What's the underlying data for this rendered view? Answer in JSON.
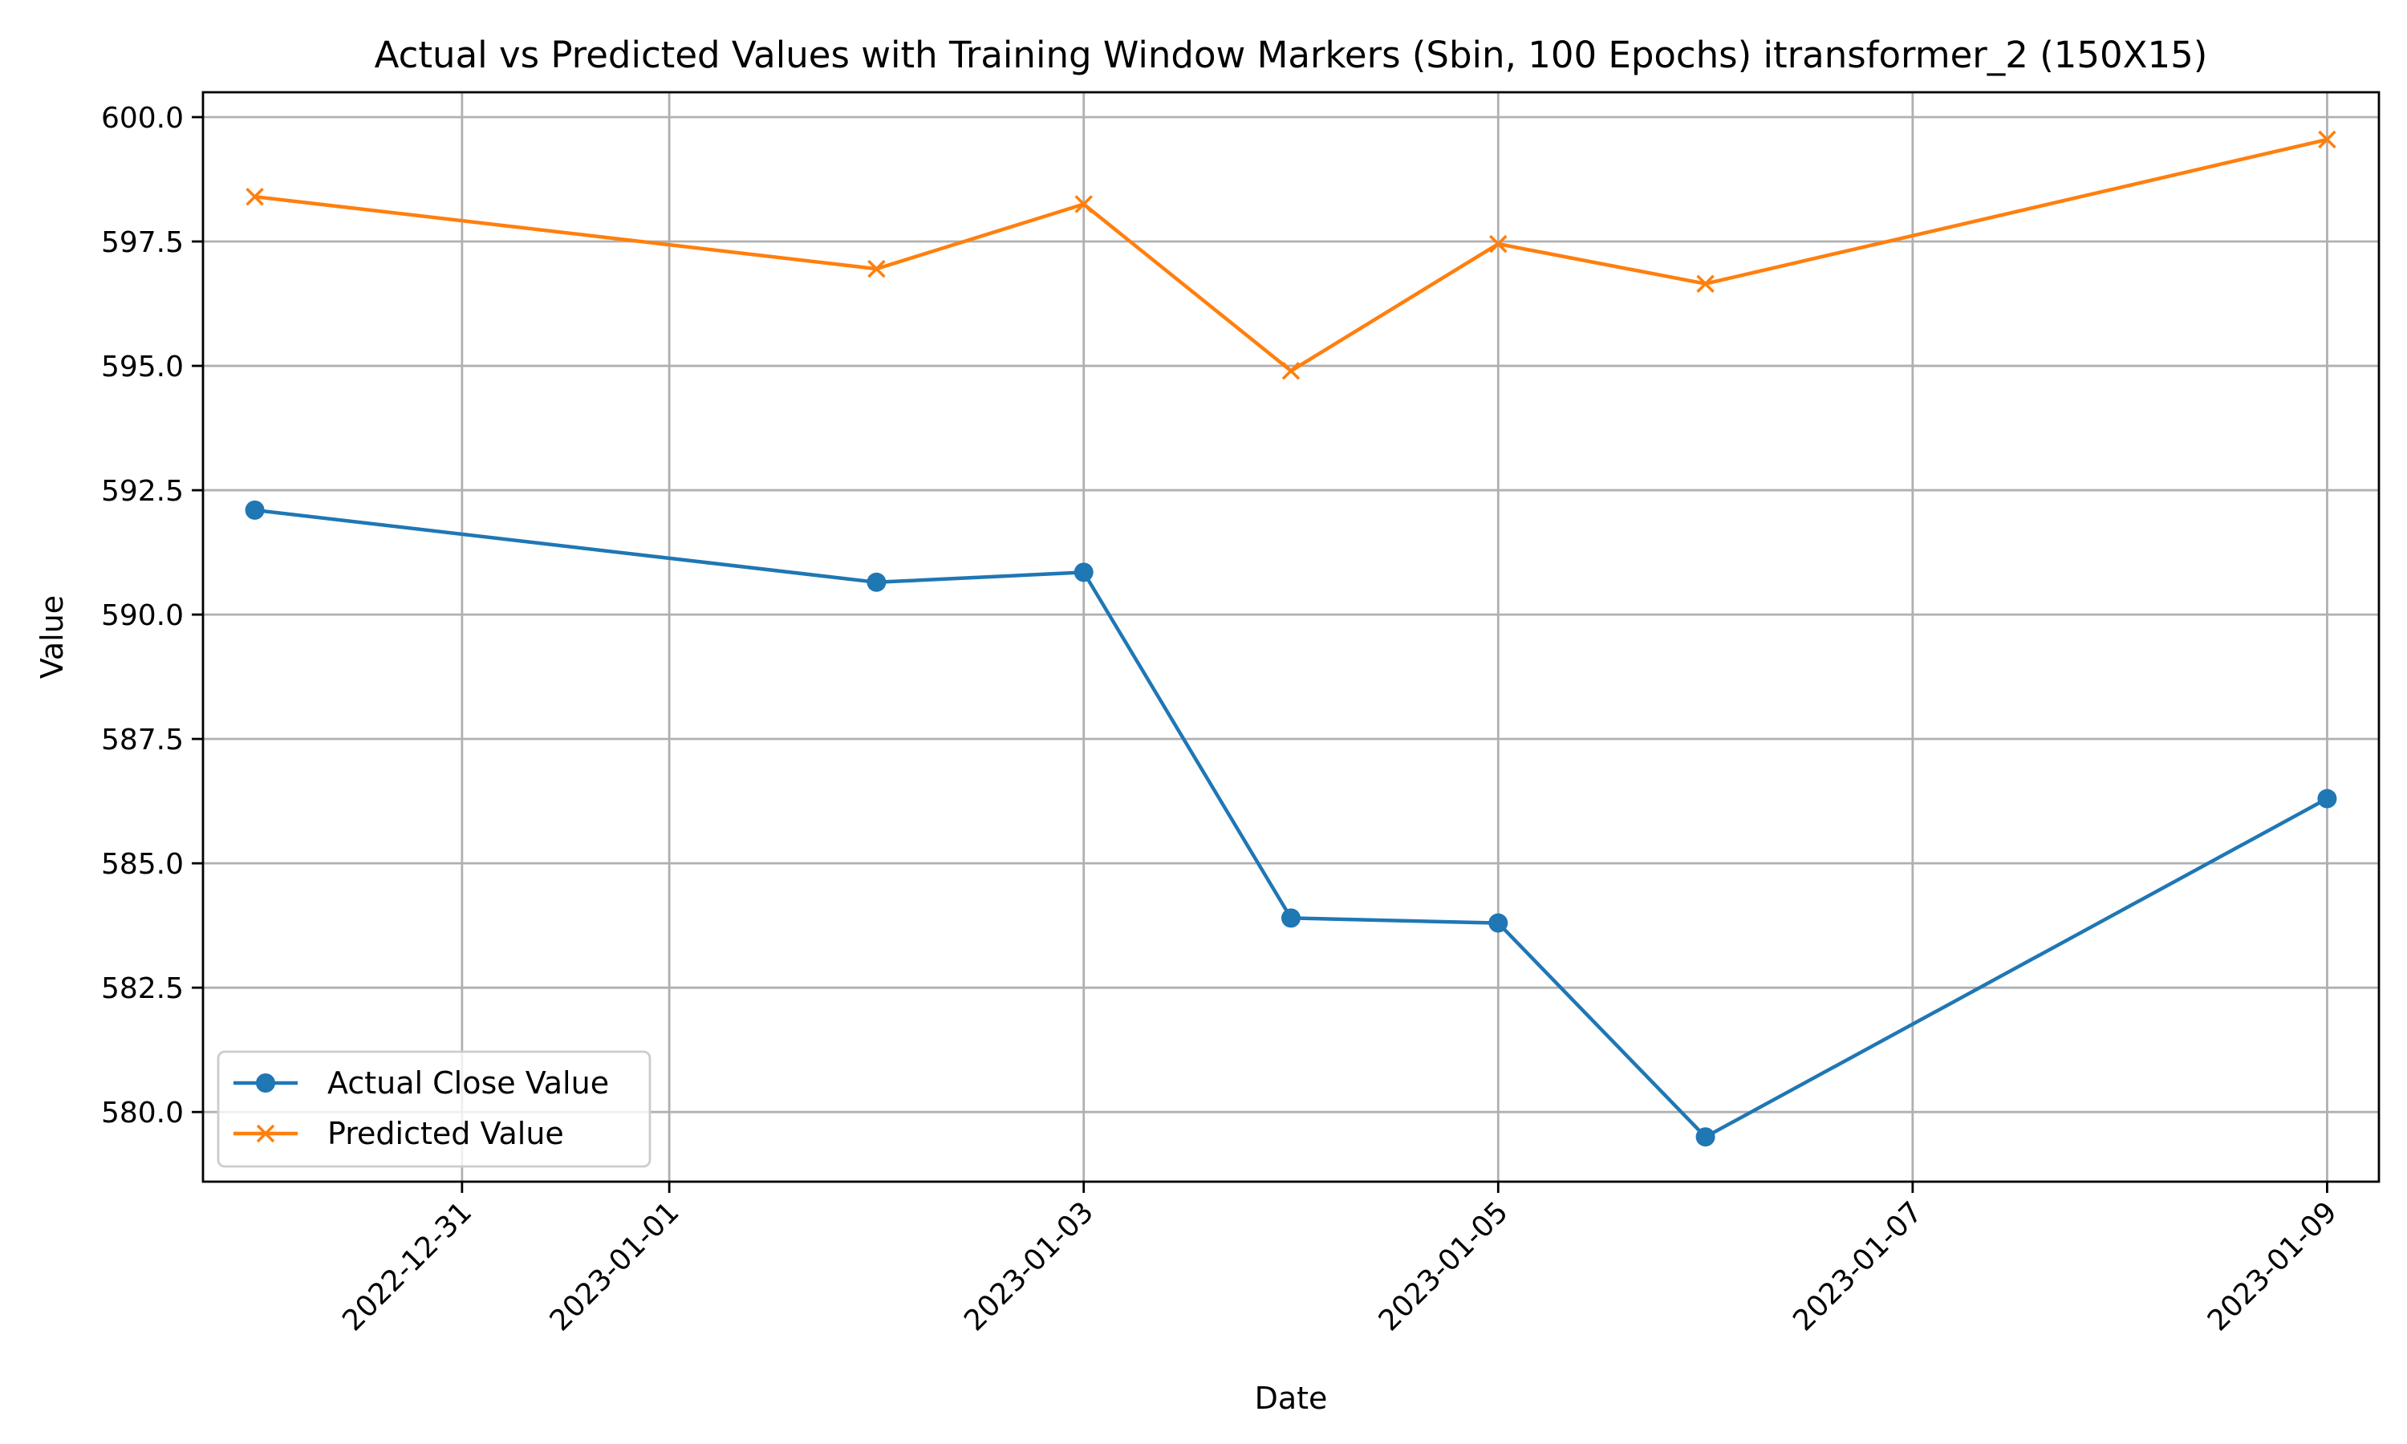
{
  "chart_data": {
    "type": "line",
    "title": "Actual vs Predicted Values with Training Window Markers (Sbin, 100 Epochs) itransformer_2 (150X15)",
    "xlabel": "Date",
    "ylabel": "Value",
    "x_type": "date",
    "xlim": [
      "2022-12-29T18:00",
      "2023-01-09T06:00"
    ],
    "ylim": [
      578.6,
      600.5
    ],
    "x_ticks": [
      "2022-12-31",
      "2023-01-01",
      "2023-01-03",
      "2023-01-05",
      "2023-01-07",
      "2023-01-09"
    ],
    "y_ticks": [
      580.0,
      582.5,
      585.0,
      587.5,
      590.0,
      592.5,
      595.0,
      597.5,
      600.0
    ],
    "y_tick_labels": [
      "580.0",
      "582.5",
      "585.0",
      "587.5",
      "590.0",
      "592.5",
      "595.0",
      "597.5",
      "600.0"
    ],
    "grid": true,
    "legend_position": "lower-left",
    "x": [
      "2022-12-30",
      "2023-01-02",
      "2023-01-03",
      "2023-01-04",
      "2023-01-05",
      "2023-01-06",
      "2023-01-09"
    ],
    "series": [
      {
        "name": "Actual Close Value",
        "marker": "circle",
        "color": "#1f77b4",
        "values": [
          592.1,
          590.65,
          590.85,
          583.9,
          583.8,
          579.5,
          586.3
        ]
      },
      {
        "name": "Predicted Value",
        "marker": "x",
        "color": "#ff7f0e",
        "values": [
          598.4,
          596.95,
          598.25,
          594.9,
          597.45,
          596.65,
          599.55
        ]
      }
    ]
  }
}
